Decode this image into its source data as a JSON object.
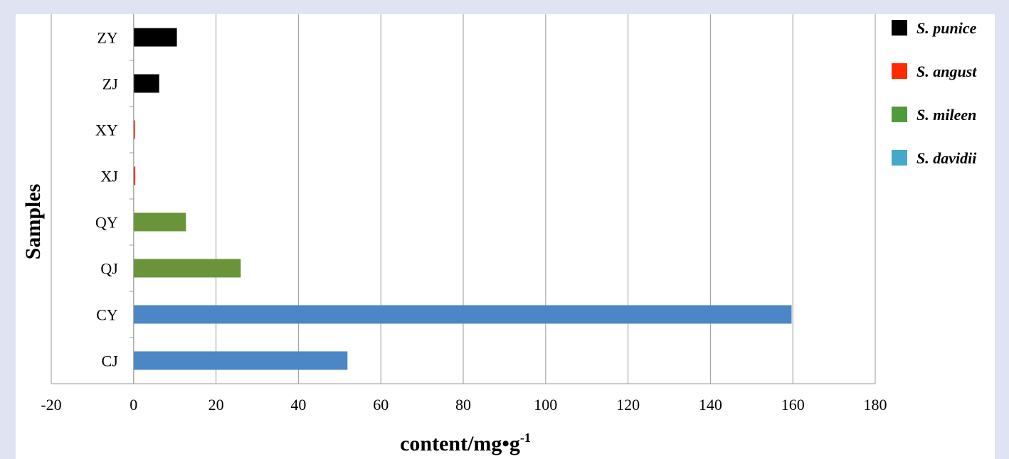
{
  "chart_data": {
    "type": "bar",
    "orientation": "horizontal",
    "title": "",
    "xlabel": "content/mg•g",
    "xlabel_superscript": "-1",
    "ylabel": "Samples",
    "xlim": [
      -20,
      180
    ],
    "x_ticks": [
      -20,
      0,
      20,
      40,
      60,
      80,
      100,
      120,
      140,
      160,
      180
    ],
    "grid": "vertical",
    "legend_position": "right",
    "categories": [
      "ZY",
      "ZJ",
      "XY",
      "XJ",
      "QY",
      "QJ",
      "CY",
      "CJ"
    ],
    "series": [
      {
        "name": "S. punice",
        "color": "#000000",
        "values": [
          10.5,
          6.2,
          null,
          null,
          null,
          null,
          null,
          null
        ]
      },
      {
        "name": "S. angust",
        "color": "#ff2a00",
        "values": [
          null,
          null,
          0.3,
          0.4,
          null,
          null,
          null,
          null
        ]
      },
      {
        "name": "S. mileen",
        "color": "#6a943a",
        "values": [
          null,
          null,
          null,
          null,
          12.7,
          26.0,
          null,
          null
        ]
      },
      {
        "name": "S. davidii",
        "color": "#4b86c6",
        "values": [
          null,
          null,
          null,
          null,
          null,
          null,
          159.7,
          51.9
        ]
      }
    ],
    "bar_colors": [
      "#000000",
      "#000000",
      "#ff2a00",
      "#ff2a00",
      "#6a943a",
      "#6a943a",
      "#4b86c6",
      "#4b86c6"
    ],
    "legend_swatch_colors": [
      "#000000",
      "#ff2a00",
      "#4f9a3c",
      "#45a8c8"
    ]
  }
}
